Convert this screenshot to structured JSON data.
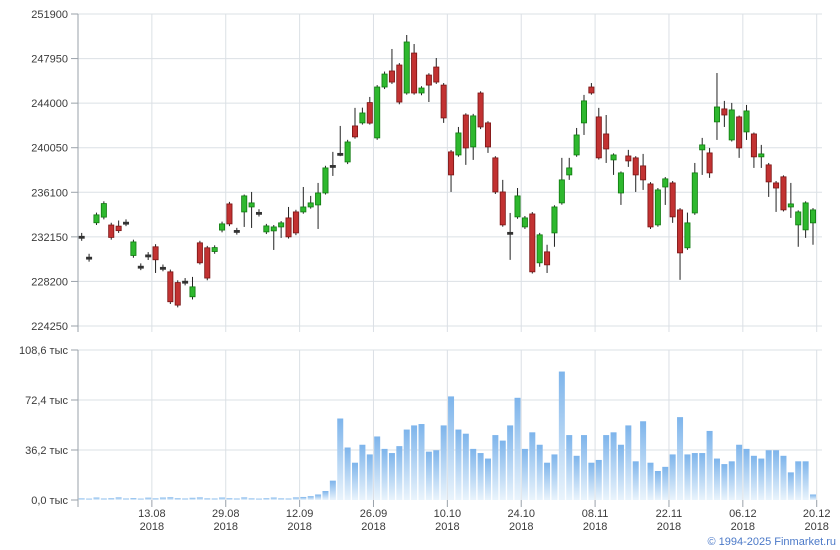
{
  "attribution": {
    "text": "© 1994-2025 Finmarket.ru",
    "color": "#4b79c8"
  },
  "chart_data": {
    "type": "candlestick",
    "title": "",
    "legend": "none",
    "grid": true,
    "colors": {
      "up": "#2eb82e",
      "up_border": "#0f7a0f",
      "down": "#c23232",
      "down_border": "#7a1414",
      "neutral": "#333333",
      "wick": "#222222",
      "grid": "#dbe0e5",
      "axis": "#9aa2aa",
      "label": "#3b3b3b",
      "volume_top": "#7db4eb",
      "volume_bottom": "#eaf4fc",
      "background": "#ffffff"
    },
    "price_axis": {
      "min": 224250,
      "max": 251900,
      "tick_values": [
        251900,
        247950,
        244000,
        240050,
        236100,
        232150,
        228200,
        224250
      ],
      "tick_labels": [
        "251900",
        "247950",
        "244000",
        "240050",
        "236100",
        "232150",
        "228200",
        "224250"
      ]
    },
    "volume_axis": {
      "min": 0,
      "max": 108.6,
      "unit": "тыс",
      "tick_values": [
        108.6,
        72.4,
        36.2,
        0
      ],
      "tick_labels": [
        "108,6 тыс",
        "72,4 тыс",
        "36,2 тыс",
        "0,0 тыс"
      ]
    },
    "x_axis": {
      "tick_dates": [
        "13.08",
        "29.08",
        "12.09",
        "26.09",
        "10.10",
        "24.10",
        "08.11",
        "22.11",
        "06.12",
        "20.12"
      ],
      "year": "2018",
      "first_tick_index": 9.5,
      "tick_every": 10
    },
    "candles": [
      [
        232100,
        232500,
        231800,
        232200
      ],
      [
        230250,
        230650,
        229950,
        230350
      ],
      [
        233400,
        234300,
        233200,
        234100
      ],
      [
        233900,
        235300,
        233700,
        235100
      ],
      [
        233200,
        233400,
        231900,
        232100
      ],
      [
        233100,
        233600,
        232500,
        232700
      ],
      [
        233350,
        233700,
        233100,
        233450
      ],
      [
        230500,
        231900,
        230300,
        231700
      ],
      [
        229450,
        229800,
        229200,
        229550
      ],
      [
        230400,
        230800,
        230100,
        230550
      ],
      [
        231270,
        231500,
        228950,
        230120
      ],
      [
        229350,
        229700,
        229100,
        229450
      ],
      [
        229050,
        229250,
        226200,
        226400
      ],
      [
        228100,
        228300,
        225900,
        226100
      ],
      [
        228100,
        228500,
        227850,
        228220
      ],
      [
        226840,
        228600,
        226600,
        227720
      ],
      [
        231620,
        231800,
        229700,
        229850
      ],
      [
        231180,
        231350,
        228300,
        228500
      ],
      [
        230850,
        231400,
        230650,
        231200
      ],
      [
        232750,
        233500,
        232550,
        233300
      ],
      [
        235070,
        235250,
        233100,
        233300
      ],
      [
        232620,
        232950,
        232350,
        232720
      ],
      [
        234360,
        235900,
        233030,
        235780
      ],
      [
        234800,
        236130,
        232940,
        235160
      ],
      [
        234220,
        234600,
        233950,
        234320
      ],
      [
        232590,
        233300,
        232400,
        233120
      ],
      [
        232680,
        233200,
        230990,
        233030
      ],
      [
        233030,
        233550,
        232060,
        233390
      ],
      [
        233830,
        234800,
        232000,
        232150
      ],
      [
        234360,
        234550,
        232300,
        232500
      ],
      [
        234360,
        236570,
        234200,
        234800
      ],
      [
        234800,
        235780,
        234650,
        235160
      ],
      [
        234980,
        236930,
        232850,
        236040
      ],
      [
        236040,
        238450,
        235900,
        238260
      ],
      [
        238400,
        239680,
        237550,
        238480
      ],
      [
        239500,
        241980,
        239300,
        239550
      ],
      [
        238790,
        240750,
        238600,
        240560
      ],
      [
        241980,
        243580,
        240850,
        241010
      ],
      [
        242250,
        243600,
        242100,
        243130
      ],
      [
        244050,
        244550,
        242100,
        242230
      ],
      [
        240920,
        245600,
        240750,
        245430
      ],
      [
        245430,
        246800,
        245250,
        246580
      ],
      [
        246850,
        248800,
        245700,
        245870
      ],
      [
        247380,
        247550,
        243900,
        244100
      ],
      [
        244900,
        250040,
        244750,
        249420
      ],
      [
        248440,
        249240,
        244750,
        244900
      ],
      [
        244900,
        245500,
        244700,
        245340
      ],
      [
        246490,
        246650,
        244100,
        245600
      ],
      [
        247200,
        248000,
        245700,
        245870
      ],
      [
        245600,
        245780,
        242250,
        242690
      ],
      [
        239680,
        239850,
        236130,
        237640
      ],
      [
        239410,
        241890,
        239250,
        241360
      ],
      [
        242950,
        243100,
        238530,
        240030
      ],
      [
        240120,
        243050,
        238970,
        242870
      ],
      [
        244900,
        245050,
        241700,
        241890
      ],
      [
        242250,
        242400,
        239590,
        240120
      ],
      [
        239150,
        239300,
        235950,
        236130
      ],
      [
        236130,
        237200,
        233050,
        233210
      ],
      [
        232450,
        234270,
        230110,
        232550
      ],
      [
        233920,
        236480,
        233750,
        235780
      ],
      [
        233030,
        234000,
        232850,
        233830
      ],
      [
        234180,
        234350,
        228900,
        229050
      ],
      [
        229850,
        232500,
        229500,
        232330
      ],
      [
        230820,
        231450,
        228950,
        229670
      ],
      [
        232500,
        234950,
        231270,
        234800
      ],
      [
        235160,
        239150,
        235000,
        237200
      ],
      [
        237640,
        239150,
        237200,
        238260
      ],
      [
        239410,
        241800,
        239250,
        241180
      ],
      [
        242250,
        244730,
        241180,
        244200
      ],
      [
        245430,
        245780,
        244750,
        244900
      ],
      [
        242780,
        243580,
        239000,
        239150
      ],
      [
        241270,
        242950,
        238700,
        239940
      ],
      [
        238970,
        239550,
        237640,
        239410
      ],
      [
        236040,
        237950,
        234980,
        237820
      ],
      [
        239320,
        239860,
        238350,
        238880
      ],
      [
        239150,
        239300,
        236130,
        237640
      ],
      [
        238440,
        239500,
        236310,
        237200
      ],
      [
        236840,
        237000,
        232850,
        233030
      ],
      [
        233210,
        236480,
        233050,
        236310
      ],
      [
        236570,
        237450,
        234980,
        237290
      ],
      [
        236930,
        237100,
        233390,
        233920
      ],
      [
        234540,
        234700,
        228340,
        230730
      ],
      [
        231180,
        234300,
        231000,
        233390
      ],
      [
        234270,
        238700,
        234100,
        237820
      ],
      [
        239860,
        240920,
        237640,
        240300
      ],
      [
        239590,
        240030,
        237380,
        237820
      ],
      [
        242340,
        246670,
        240740,
        243660
      ],
      [
        243490,
        244200,
        241890,
        242950
      ],
      [
        240740,
        244020,
        240600,
        243400
      ],
      [
        242780,
        242900,
        239150,
        240030
      ],
      [
        241450,
        243840,
        240740,
        243310
      ],
      [
        241270,
        241400,
        238260,
        239240
      ],
      [
        239240,
        240300,
        238260,
        239500
      ],
      [
        238530,
        238700,
        235690,
        237020
      ],
      [
        236930,
        237100,
        234360,
        236480
      ],
      [
        237470,
        237600,
        234400,
        234540
      ],
      [
        234800,
        236930,
        233830,
        235070
      ],
      [
        233210,
        234500,
        231270,
        234360
      ],
      [
        232770,
        235300,
        232060,
        235160
      ],
      [
        233390,
        234700,
        231450,
        234540
      ]
    ],
    "volumes": [
      1.2,
      1.0,
      1.8,
      1.1,
      1.3,
      1.9,
      1.1,
      1.4,
      1.0,
      1.7,
      1.2,
      1.8,
      2.0,
      1.3,
      1.1,
      1.6,
      1.9,
      1.2,
      1.1,
      1.8,
      1.3,
      1.1,
      1.9,
      1.2,
      1.0,
      1.3,
      1.8,
      1.2,
      1.1,
      1.9,
      2.2,
      2.8,
      4.0,
      6.5,
      14,
      59,
      38,
      27,
      40,
      33,
      46,
      37,
      34,
      39,
      51,
      54,
      55,
      35,
      36,
      54,
      75,
      51,
      48,
      37,
      34,
      30,
      47,
      43,
      54,
      74,
      37,
      49,
      40,
      27,
      33,
      93,
      47,
      32,
      47,
      27,
      29,
      47,
      49,
      40,
      54,
      28,
      57,
      27,
      21,
      24,
      33,
      60,
      33,
      34,
      34,
      50,
      30,
      26,
      28,
      40,
      37,
      32,
      30,
      36,
      36,
      32,
      20,
      28,
      28,
      4
    ]
  }
}
